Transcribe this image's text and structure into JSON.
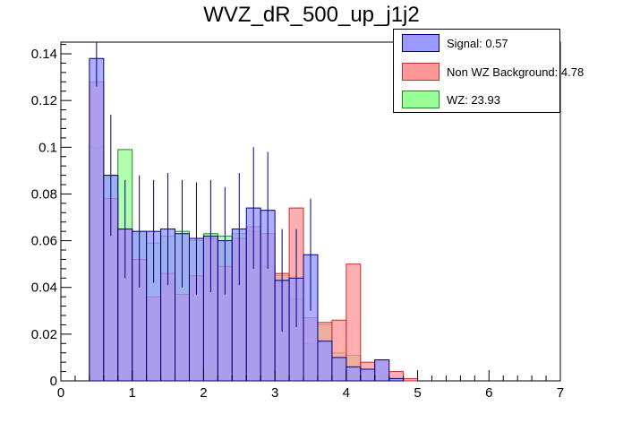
{
  "chart_data": {
    "type": "histogram",
    "title": "WVZ_dR_500_up_j1j2",
    "xlabel": "",
    "ylabel": "",
    "xlim": [
      0,
      7
    ],
    "ylim": [
      0,
      0.145
    ],
    "bin_width": 0.2,
    "x_ticks": [
      "0",
      "1",
      "2",
      "3",
      "4",
      "5",
      "6",
      "7"
    ],
    "y_ticks": [
      {
        "value": 0,
        "label": "0"
      },
      {
        "value": 0.02,
        "label": "0.02"
      },
      {
        "value": 0.04,
        "label": "0.04"
      },
      {
        "value": 0.06,
        "label": "0.06"
      },
      {
        "value": 0.08,
        "label": "0.08"
      },
      {
        "value": 0.1,
        "label": "0.1"
      },
      {
        "value": 0.12,
        "label": "0.12"
      },
      {
        "value": 0.14,
        "label": "0.14"
      }
    ],
    "bin_lows": [
      0.4,
      0.6,
      0.8,
      1.0,
      1.2,
      1.4,
      1.6,
      1.8,
      2.0,
      2.2,
      2.4,
      2.6,
      2.8,
      3.0,
      3.2,
      3.4,
      3.6,
      3.8,
      4.0,
      4.2,
      4.4,
      4.6,
      4.8,
      5.0
    ],
    "series": [
      {
        "name": "WZ",
        "legend_label": "WZ: 23.93",
        "fill": "#99ff99",
        "fill_opacity": 0.78,
        "stroke": "#208a20",
        "values": [
          0.1,
          0.088,
          0.099,
          0.064,
          0.059,
          0.062,
          0.064,
          0.06,
          0.063,
          0.062,
          0.063,
          0.064,
          0.049,
          0.045,
          0.035,
          0.016,
          0.024,
          0.012,
          0.011,
          0.004,
          0.002,
          0.001,
          0.0,
          0.0
        ]
      },
      {
        "name": "Non WZ Background",
        "legend_label": "Non WZ Background: 4.78",
        "fill": "#ff9999",
        "fill_opacity": 0.78,
        "stroke": "#c03030",
        "values": [
          0.128,
          0.078,
          0.065,
          0.052,
          0.036,
          0.046,
          0.037,
          0.045,
          0.061,
          0.049,
          0.061,
          0.066,
          0.063,
          0.046,
          0.074,
          0.027,
          0.025,
          0.026,
          0.05,
          0.008,
          0.009,
          0.004,
          0.001,
          0.0
        ]
      },
      {
        "name": "Signal",
        "legend_label": "Signal: 0.57",
        "fill": "#9999ff",
        "fill_opacity": 0.78,
        "stroke": "#000080",
        "values": [
          0.138,
          0.088,
          0.065,
          0.064,
          0.064,
          0.065,
          0.063,
          0.061,
          0.062,
          0.06,
          0.065,
          0.074,
          0.073,
          0.043,
          0.044,
          0.054,
          0.017,
          0.01,
          0.006,
          0.005,
          0.009,
          0.001,
          0.0,
          0.0
        ],
        "errors": [
          0.012,
          0.026,
          0.021,
          0.024,
          0.022,
          0.024,
          0.023,
          0.024,
          0.024,
          0.023,
          0.024,
          0.026,
          0.025,
          0.022,
          0.021,
          0.024,
          0.0,
          0.0,
          0.0,
          0.0,
          0.0,
          0.0,
          0.0,
          0.0
        ]
      }
    ],
    "legend_position": "top-right"
  }
}
